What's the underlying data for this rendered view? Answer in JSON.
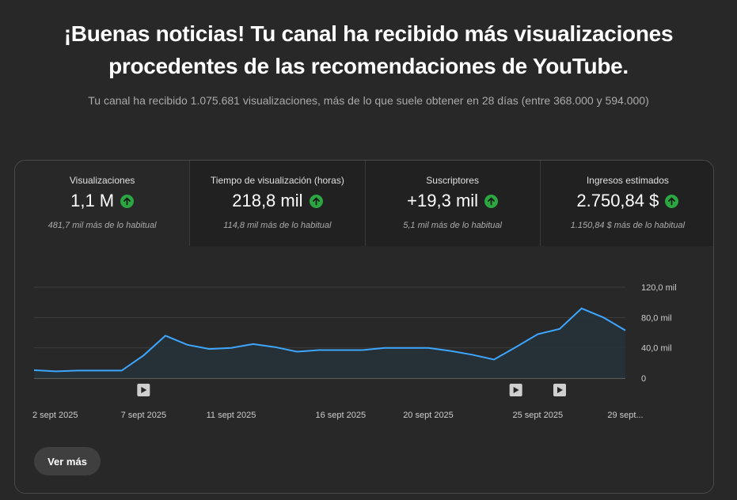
{
  "headline": {
    "line1": "¡Buenas noticias! Tu canal ha recibido más visualizaciones",
    "line2": "procedentes de las recomendaciones de YouTube."
  },
  "subtitle": "Tu canal ha recibido 1.075.681 visualizaciones, más de lo que suele obtener en 28 días (entre 368.000 y 594.000)",
  "colors": {
    "background": "#282828",
    "line": "#3ea6ff",
    "area": "#263238",
    "up_badge": "#2ba640"
  },
  "tabs": [
    {
      "label": "Visualizaciones",
      "value": "1,1 M",
      "note": "481,7 mil más de lo habitual",
      "icon": "arrow-up-icon"
    },
    {
      "label": "Tiempo de visualización (horas)",
      "value": "218,8 mil",
      "note": "114,8 mil más de lo habitual",
      "icon": "arrow-up-icon"
    },
    {
      "label": "Suscriptores",
      "value": "+19,3 mil",
      "note": "5,1 mil más de lo habitual",
      "icon": "arrow-up-icon"
    },
    {
      "label": "Ingresos estimados",
      "value": "2.750,84 $",
      "note": "1.150,84 $ más de lo habitual",
      "icon": "arrow-up-icon"
    }
  ],
  "chart_data": {
    "type": "area",
    "x": [
      "2 sept 2025",
      "3 sept 2025",
      "4 sept 2025",
      "5 sept 2025",
      "6 sept 2025",
      "7 sept 2025",
      "8 sept 2025",
      "9 sept 2025",
      "10 sept 2025",
      "11 sept 2025",
      "12 sept 2025",
      "13 sept 2025",
      "14 sept 2025",
      "15 sept 2025",
      "16 sept 2025",
      "17 sept 2025",
      "18 sept 2025",
      "19 sept 2025",
      "20 sept 2025",
      "21 sept 2025",
      "22 sept 2025",
      "23 sept 2025",
      "24 sept 2025",
      "25 sept 2025",
      "26 sept 2025",
      "27 sept 2025",
      "28 sept 2025",
      "29 sept 2025"
    ],
    "series": [
      {
        "values": [
          10500,
          9000,
          10000,
          10000,
          10000,
          30000,
          56000,
          44000,
          38500,
          40000,
          45000,
          41000,
          35000,
          37000,
          37000,
          37000,
          40000,
          40000,
          40000,
          36000,
          31000,
          24500,
          41000,
          58000,
          65000,
          92000,
          80000,
          63000
        ]
      }
    ],
    "x_tick_labels": [
      "2 sept 2025",
      "7 sept 2025",
      "11 sept 2025",
      "16 sept 2025",
      "20 sept 2025",
      "25 sept 2025",
      "29 sept..."
    ],
    "y_ticks": [
      "0",
      "40,0 mil",
      "80,0 mil",
      "120,0 mil"
    ],
    "ylim": [
      0,
      120000
    ],
    "grid": true,
    "video_markers": [
      "7 sept 2025",
      "24 sept 2025",
      "26 sept 2025"
    ],
    "video_marker_icon": "play-icon"
  },
  "more_button": {
    "label": "Ver más"
  }
}
